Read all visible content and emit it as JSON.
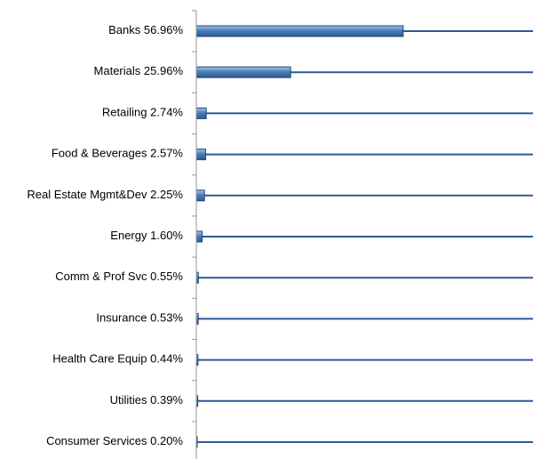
{
  "chart_data": {
    "type": "bar",
    "orientation": "horizontal",
    "categories": [
      "Banks",
      "Materials",
      "Retailing",
      "Food & Beverages",
      "Real Estate Mgmt&Dev",
      "Energy",
      "Comm & Prof Svc",
      "Insurance",
      "Health Care Equip",
      "Utilities",
      "Consumer Services"
    ],
    "values": [
      56.96,
      25.96,
      2.74,
      2.57,
      2.25,
      1.6,
      0.55,
      0.53,
      0.44,
      0.39,
      0.2
    ],
    "value_labels": [
      "56.96%",
      "25.96%",
      "2.74%",
      "2.57%",
      "2.25%",
      "1.60%",
      "0.55%",
      "0.53%",
      "0.44%",
      "0.39%",
      "0.20%"
    ],
    "color": "#4a7ebb",
    "xlim": [
      0,
      92.7
    ]
  }
}
